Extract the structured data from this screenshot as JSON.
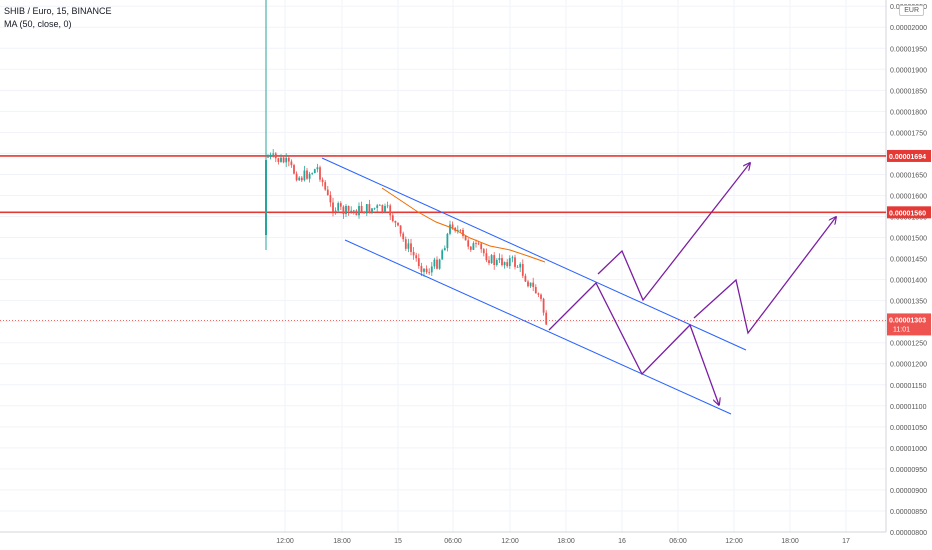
{
  "legend": {
    "symbol_line": "SHIB / Euro, 15, BINANCE",
    "indicator_line": "MA (50, close, 0)"
  },
  "currency_badge": "EUR",
  "colors": {
    "up": "#26a69a",
    "down": "#ef5350",
    "ma": "#ef6c00",
    "channel": "#2962ff",
    "projection": "#7b1fa2",
    "level": "#e53935",
    "price_line": "#ef5350"
  },
  "chart_data": {
    "type": "candlestick",
    "title": "",
    "y_axis": {
      "ylim": [
        8e-06,
        2.06e-05
      ],
      "ticks": [
        "0.00000800",
        "0.00000850",
        "0.00000900",
        "0.00000950",
        "0.00001000",
        "0.00001050",
        "0.00001100",
        "0.00001150",
        "0.00001200",
        "0.00001250",
        "0.00001300",
        "0.00001350",
        "0.00001400",
        "0.00001450",
        "0.00001500",
        "0.00001550",
        "0.00001600",
        "0.00001650",
        "0.00001700",
        "0.00001750",
        "0.00001800",
        "0.00001850",
        "0.00001900",
        "0.00001950",
        "0.00002000",
        "0.00002050"
      ]
    },
    "x_axis": {
      "ticks": [
        "12:00",
        "18:00",
        "15",
        "06:00",
        "12:00",
        "18:00",
        "16",
        "06:00",
        "12:00",
        "18:00",
        "17"
      ]
    },
    "horizontal_levels": [
      {
        "value": 1.694e-05,
        "label": "0.00001694"
      },
      {
        "value": 1.56e-05,
        "label": "0.00001560"
      }
    ],
    "last_price": {
      "value": 1.303e-05,
      "label": "0.00001303",
      "countdown": "11:01"
    },
    "grid": true
  }
}
